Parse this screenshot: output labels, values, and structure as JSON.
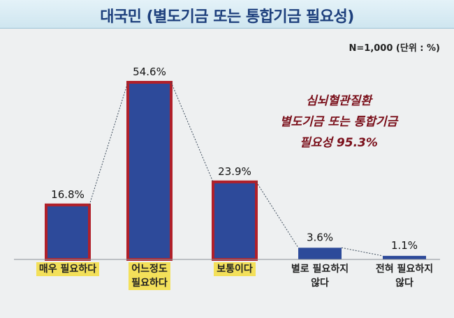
{
  "header": {
    "title": "대국민 (별도기금 또는 통합기금 필요성)"
  },
  "note": "N=1,000 (단위 : %)",
  "annotation": [
    "심뇌혈관질환",
    "별도기금 또는 통합기금",
    "필요성 95.3%"
  ],
  "colors": {
    "bar_fill": "#2d4a9a",
    "bar_border": "#b0202a",
    "highlight": "#f3e05a",
    "annotation": "#7a0f1a"
  },
  "chart_data": {
    "type": "bar",
    "title": "대국민 (별도기금 또는 통합기금 필요성)",
    "categories": [
      "매우 필요하다",
      "어느정도 필요하다",
      "보통이다",
      "별로 필요하지 않다",
      "전혀 필요하지 않다"
    ],
    "category_lines": [
      [
        "매우 필요하다"
      ],
      [
        "어느정도",
        "필요하다"
      ],
      [
        "보통이다"
      ],
      [
        "별로 필요하지",
        "않다"
      ],
      [
        "전혀 필요하지",
        "않다"
      ]
    ],
    "values": [
      16.8,
      54.6,
      23.9,
      3.6,
      1.1
    ],
    "value_labels": [
      "16.8%",
      "54.6%",
      "23.9%",
      "3.6%",
      "1.1%"
    ],
    "highlighted": [
      true,
      true,
      true,
      false,
      false
    ],
    "xlabel": "",
    "ylabel": "",
    "ylim": [
      0,
      54.6
    ],
    "grid": false
  }
}
